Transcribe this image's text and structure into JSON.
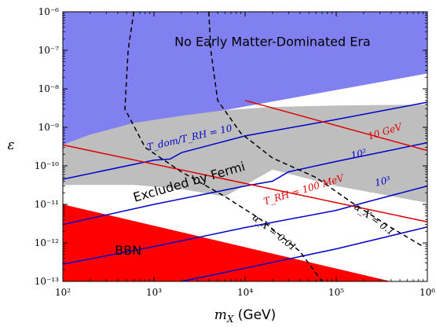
{
  "chart_data": {
    "type": "area",
    "xlabel": "m_X (GeV)",
    "ylabel": "ε",
    "x_scale": "log",
    "y_scale": "log",
    "xlim": [
      100,
      1000000
    ],
    "ylim": [
      1e-13,
      1e-06
    ],
    "x_ticks": [
      {
        "value": 100,
        "label": "10²"
      },
      {
        "value": 1000,
        "label": "10³"
      },
      {
        "value": 10000,
        "label": "10⁴"
      },
      {
        "value": 100000,
        "label": "10⁵"
      },
      {
        "value": 1000000,
        "label": "10⁶"
      }
    ],
    "y_ticks": [
      {
        "value": 1e-13,
        "label": "10⁻¹³"
      },
      {
        "value": 1e-12,
        "label": "10⁻¹²"
      },
      {
        "value": 1e-11,
        "label": "10⁻¹¹"
      },
      {
        "value": 1e-10,
        "label": "10⁻¹⁰"
      },
      {
        "value": 1e-09,
        "label": "10⁻⁹"
      },
      {
        "value": 1e-08,
        "label": "10⁻⁸"
      },
      {
        "value": 1e-07,
        "label": "10⁻⁷"
      },
      {
        "value": 1e-06,
        "label": "10⁻⁶"
      }
    ],
    "grid": false,
    "regions": [
      {
        "id": "no-emd",
        "label": "No Early Matter-Dominated Era",
        "color": "#8080f0",
        "polygon": [
          [
            100,
            1e-06
          ],
          [
            1000000,
            1e-06
          ],
          [
            1000000,
            2.5e-08
          ],
          [
            200,
            6.5e-10
          ],
          [
            100,
            3.5e-10
          ]
        ]
      },
      {
        "id": "fermi",
        "label": "Excluded by Fermi",
        "color": "#bebebe",
        "polygon": [
          [
            100,
            3.5e-10
          ],
          [
            200,
            6.5e-10
          ],
          [
            600,
            1.3e-09
          ],
          [
            2000,
            2e-09
          ],
          [
            6000,
            2.8e-09
          ],
          [
            20000,
            3.4e-09
          ],
          [
            100000,
            3.7e-09
          ],
          [
            1000000,
            3.9e-09
          ],
          [
            1000000,
            1.1e-11
          ],
          [
            100000,
            3e-11
          ],
          [
            20000,
            8e-11
          ],
          [
            6000,
            1.6e-11
          ],
          [
            2000,
            2.5e-11
          ],
          [
            600,
            3.2e-11
          ],
          [
            200,
            3.2e-11
          ],
          [
            100,
            3.2e-11
          ]
        ]
      },
      {
        "id": "bbn",
        "label": "BBN",
        "color": "#ff0000",
        "polygon": [
          [
            100,
            1e-11
          ],
          [
            400000,
            1e-13
          ],
          [
            100,
            1e-13
          ]
        ]
      }
    ],
    "series": [
      {
        "id": "t10",
        "label": "T_dom/T_RH = 10",
        "color": "#0000cc",
        "points": [
          [
            100,
            4.5e-11
          ],
          [
            1000,
            1.4e-10
          ],
          [
            1500,
            1.5e-10
          ],
          [
            2000,
            2.2e-10
          ],
          [
            10000,
            6e-10
          ],
          [
            100000,
            1.6e-09
          ],
          [
            1000000,
            4.5e-09
          ]
        ]
      },
      {
        "id": "t100",
        "label": "10²",
        "color": "#0000cc",
        "points": [
          [
            100,
            3e-12
          ],
          [
            1000,
            1e-11
          ],
          [
            10000,
            3e-11
          ],
          [
            20000,
            4e-11
          ],
          [
            30000,
            7e-11
          ],
          [
            100000,
            1.3e-10
          ],
          [
            1000000,
            4e-10
          ]
        ]
      },
      {
        "id": "t1000",
        "label": "10³",
        "color": "#0000cc",
        "points": [
          [
            100,
            2.8e-13
          ],
          [
            1000,
            8e-13
          ],
          [
            10000,
            2.5e-12
          ],
          [
            100000,
            7e-12
          ],
          [
            200000,
            1.1e-11
          ],
          [
            1000000,
            3e-11
          ]
        ]
      },
      {
        "id": "t10000",
        "label": "",
        "color": "#0000cc",
        "points": [
          [
            2000,
            1e-13
          ],
          [
            10000,
            2.2e-13
          ],
          [
            100000,
            7e-13
          ],
          [
            300000,
            1.3e-12
          ],
          [
            1000000,
            2.6e-12
          ]
        ]
      },
      {
        "id": "trh-10gev",
        "label": "10 GeV",
        "color": "#e00000",
        "points": [
          [
            10000,
            5e-09
          ],
          [
            1000000,
            2.5e-10
          ]
        ]
      },
      {
        "id": "trh-100mev",
        "label": "T_RH = 100 MeV",
        "color": "#e00000",
        "points": [
          [
            100,
            3.5e-10
          ],
          [
            1000000,
            3.5e-12
          ]
        ]
      },
      {
        "id": "alpha-001",
        "label": "α_X = 0.01",
        "color": "#000000",
        "dashed": true,
        "points": [
          [
            600,
            1e-06
          ],
          [
            520,
            1e-07
          ],
          [
            480,
            3e-09
          ],
          [
            800,
            3e-10
          ],
          [
            2000,
            7e-11
          ],
          [
            6000,
            1.6e-11
          ],
          [
            15000,
            4e-12
          ],
          [
            40000,
            6e-13
          ],
          [
            70000,
            1e-13
          ]
        ]
      },
      {
        "id": "alpha-01",
        "label": "α_X = 0.1",
        "color": "#000000",
        "dashed": true,
        "points": [
          [
            4000,
            1e-06
          ],
          [
            4200,
            1e-07
          ],
          [
            5000,
            5e-09
          ],
          [
            9000,
            7e-10
          ],
          [
            20000,
            1.6e-10
          ],
          [
            60000,
            5e-11
          ],
          [
            150000,
            1.1e-11
          ],
          [
            400000,
            2.5e-12
          ],
          [
            900000,
            8e-13
          ]
        ]
      }
    ],
    "annotations": [
      {
        "id": "label-t10",
        "text": "T_dom/T_RH = 10",
        "color": "#0000cc",
        "x": 2500,
        "y": 4.5e-10,
        "angle": -13
      },
      {
        "id": "label-t100",
        "text": "10²",
        "color": "#0000cc",
        "x": 180000,
        "y": 1.7e-10,
        "angle": -13
      },
      {
        "id": "label-t1000",
        "text": "10³",
        "color": "#0000cc",
        "x": 330000,
        "y": 3.3e-11,
        "angle": -13
      },
      {
        "id": "label-10gev",
        "text": "10 GeV",
        "color": "#e00000",
        "x": 350000,
        "y": 6.5e-10,
        "angle": -17
      },
      {
        "id": "label-100mev",
        "text": "T_RH = 100 MeV",
        "color": "#e00000",
        "x": 45000,
        "y": 2e-11,
        "angle": -17
      },
      {
        "id": "label-a001",
        "text": "α_X = 0.01",
        "color": "#000000",
        "x": 20000,
        "y": 1.6e-12,
        "angle": 38
      },
      {
        "id": "label-a01",
        "text": "α_X = 0.1",
        "color": "#000000",
        "x": 250000,
        "y": 3.5e-12,
        "angle": 36
      }
    ],
    "region_labels": [
      {
        "id": "label-no-emd",
        "text": "No Early Matter-Dominated Era",
        "x": 20000,
        "y": 1.3e-07,
        "angle": 0
      },
      {
        "id": "label-fermi",
        "text": "Excluded by Fermi",
        "x": 2500,
        "y": 3e-11,
        "angle": -16
      },
      {
        "id": "label-bbn",
        "text": "BBN",
        "x": 520,
        "y": 5e-13,
        "angle": 0
      }
    ]
  }
}
